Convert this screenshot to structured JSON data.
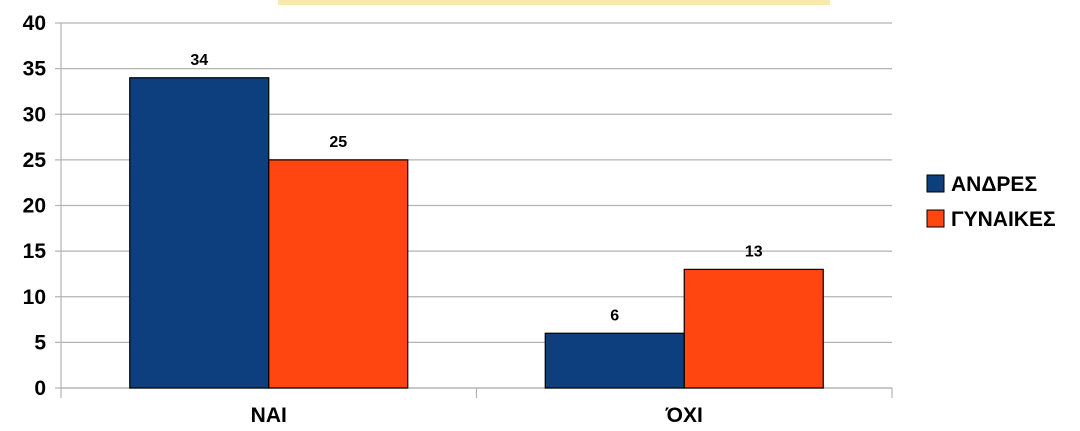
{
  "colors": {
    "andres": "#0d3f7e",
    "gynaikes": "#ff4510",
    "grid": "#b3b3b3",
    "axis": "#b3b3b3",
    "background": "#ffffff"
  },
  "chart_data": {
    "type": "bar",
    "categories": [
      "ΝΑΙ",
      "ΌΧΙ"
    ],
    "series": [
      {
        "name": "ΑΝΔΡΕΣ",
        "values": [
          34,
          6
        ]
      },
      {
        "name": "ΓΥΝΑΙΚΕΣ",
        "values": [
          25,
          13
        ]
      }
    ],
    "data_labels": true,
    "yticks": [
      0,
      5,
      10,
      15,
      20,
      25,
      30,
      35,
      40
    ],
    "ylim": [
      0,
      40
    ],
    "grid": true,
    "legend_position": "right",
    "title": "",
    "xlabel": "",
    "ylabel": ""
  }
}
